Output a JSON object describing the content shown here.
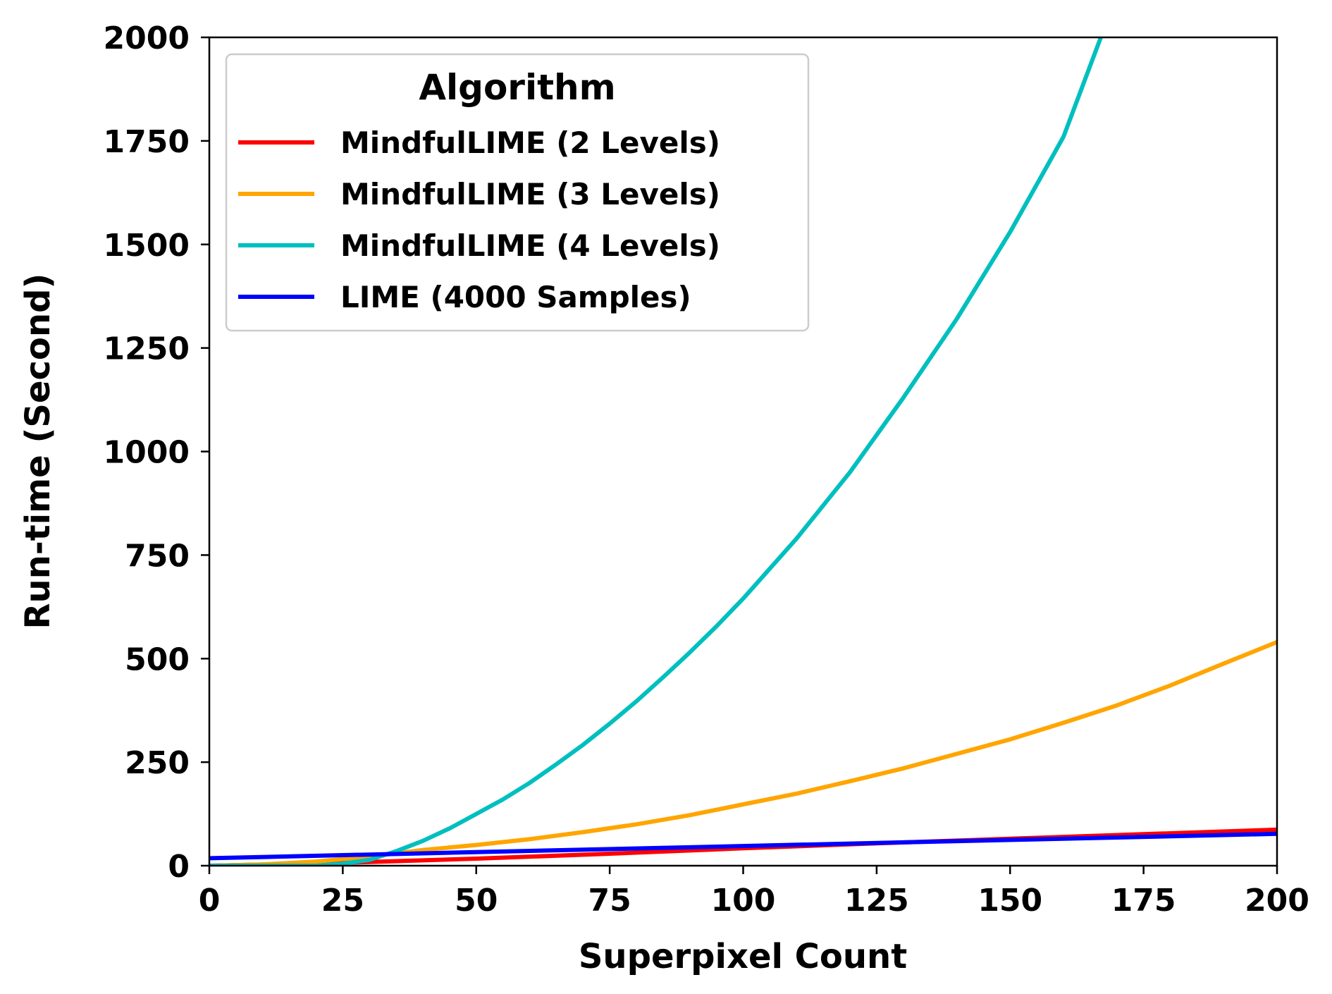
{
  "chart_data": {
    "type": "line",
    "title": "",
    "xlabel": "Superpixel Count",
    "ylabel": "Run-time (Second)",
    "xlim": [
      0,
      200
    ],
    "ylim": [
      0,
      2000
    ],
    "xticks": [
      0,
      25,
      50,
      75,
      100,
      125,
      150,
      175,
      200
    ],
    "yticks": [
      0,
      250,
      500,
      750,
      1000,
      1250,
      1500,
      1750,
      2000
    ],
    "grid": false,
    "legend": {
      "title": "Algorithm",
      "position": "upper-left"
    },
    "series": [
      {
        "name": "MindfulLIME (2 Levels)",
        "color": "#ff0000",
        "x": [
          0,
          25,
          50,
          75,
          100,
          125,
          150,
          175,
          200
        ],
        "y": [
          0,
          7,
          17,
          29,
          42,
          54,
          65,
          76,
          87
        ]
      },
      {
        "name": "MindfulLIME (3 Levels)",
        "color": "#ffa500",
        "x": [
          0,
          10,
          20,
          30,
          40,
          50,
          60,
          70,
          80,
          90,
          100,
          110,
          120,
          130,
          140,
          150,
          160,
          170,
          180,
          190,
          200
        ],
        "y": [
          0,
          3,
          10,
          22,
          38,
          50,
          64,
          81,
          100,
          122,
          148,
          174,
          204,
          235,
          270,
          305,
          345,
          387,
          435,
          488,
          540
        ]
      },
      {
        "name": "MindfulLIME (4 Levels)",
        "color": "#00bfbf",
        "x": [
          0,
          10,
          20,
          25,
          30,
          35,
          40,
          45,
          50,
          55,
          60,
          65,
          70,
          75,
          80,
          85,
          90,
          95,
          100,
          110,
          120,
          130,
          140,
          150,
          160,
          167
        ],
        "y": [
          0,
          0,
          0,
          5,
          14,
          35,
          60,
          90,
          125,
          160,
          200,
          245,
          292,
          343,
          397,
          455,
          515,
          578,
          645,
          790,
          950,
          1130,
          1320,
          1530,
          1760,
          2000
        ]
      },
      {
        "name": "LIME (4000 Samples)",
        "color": "#0000ff",
        "x": [
          0,
          200
        ],
        "y": [
          18,
          77
        ]
      }
    ]
  }
}
